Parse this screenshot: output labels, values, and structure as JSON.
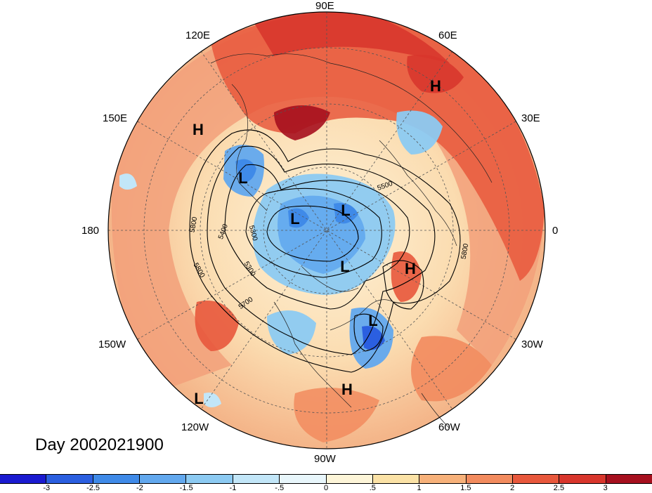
{
  "title": "Day 2002021900",
  "longitude_labels": {
    "top": "90E",
    "upper_left": "120E",
    "upper_right": "60E",
    "left_upper": "150E",
    "right_upper": "30E",
    "left": "180",
    "right": "0",
    "left_lower": "150W",
    "right_lower": "30W",
    "lower_left": "120W",
    "lower_right": "60W",
    "bottom": "90W"
  },
  "pressure_centers": [
    {
      "type": "H",
      "label": "H"
    },
    {
      "type": "H",
      "label": "H"
    },
    {
      "type": "L",
      "label": "L"
    },
    {
      "type": "L",
      "label": "L"
    },
    {
      "type": "L",
      "label": "L"
    },
    {
      "type": "L",
      "label": "L"
    },
    {
      "type": "H",
      "label": "H"
    },
    {
      "type": "L",
      "label": "L"
    },
    {
      "type": "H",
      "label": "H"
    },
    {
      "type": "L",
      "label": "L"
    }
  ],
  "contour_labels": [
    "5800",
    "5400",
    "5300",
    "5300",
    "5800",
    "5700",
    "5500",
    "5800"
  ],
  "colorbar": {
    "colors": [
      "#1a1ad0",
      "#2b5fe0",
      "#3f8ae8",
      "#62a8ee",
      "#8ccaf2",
      "#c2e6f8",
      "#e8f6fb",
      "#fdf5d8",
      "#fbe2a6",
      "#f7b17a",
      "#f28b5e",
      "#e8583c",
      "#d8362c",
      "#a6101e"
    ],
    "tick_labels": [
      "-3",
      "-2.5",
      "-2",
      "-1.5",
      "-1",
      "-.5",
      "0",
      ".5",
      "1",
      "1.5",
      "2",
      "2.5",
      "3"
    ]
  },
  "colors": {
    "warm_anomaly": "#f2a07a",
    "strong_warm": "#d8362c",
    "cold_anomaly": "#62a8ee",
    "neutral": "#fdf2d8",
    "background": "#ffffff"
  }
}
